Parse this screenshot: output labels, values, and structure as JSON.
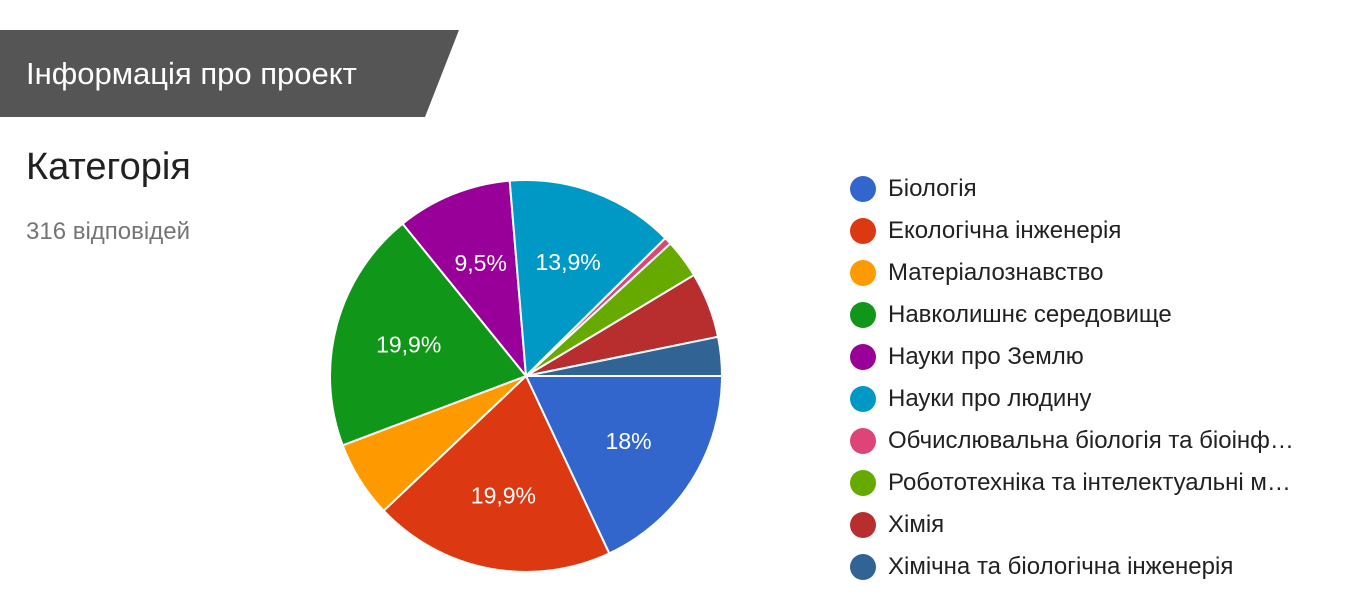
{
  "section": {
    "title": "Інформація про проект"
  },
  "question": {
    "title": "Категорія",
    "responses": "316 відповідей"
  },
  "chart_data": {
    "type": "pie",
    "title": "",
    "categories": [
      "Біологія",
      "Екологічна інженерія",
      "Матеріалознавство",
      "Навколишнє середовище",
      "Науки про Землю",
      "Науки про людину",
      "Обчислювальна біологія та біоінф…",
      "Робототехніка та інтелектуальні м…",
      "Хімія",
      "Хімічна та біологічна інженерія"
    ],
    "values": [
      18.0,
      19.9,
      6.3,
      19.9,
      9.5,
      13.9,
      0.6,
      3.2,
      5.4,
      3.2
    ],
    "data_labels": [
      "18%",
      "19,9%",
      "",
      "19,9%",
      "9,5%",
      "13,9%",
      "",
      "",
      "",
      ""
    ],
    "colors": [
      "#3366cc",
      "#dc3912",
      "#ff9900",
      "#109618",
      "#990099",
      "#0099c6",
      "#dd4477",
      "#66aa00",
      "#b82e2e",
      "#316395"
    ],
    "legend_position": "right"
  }
}
